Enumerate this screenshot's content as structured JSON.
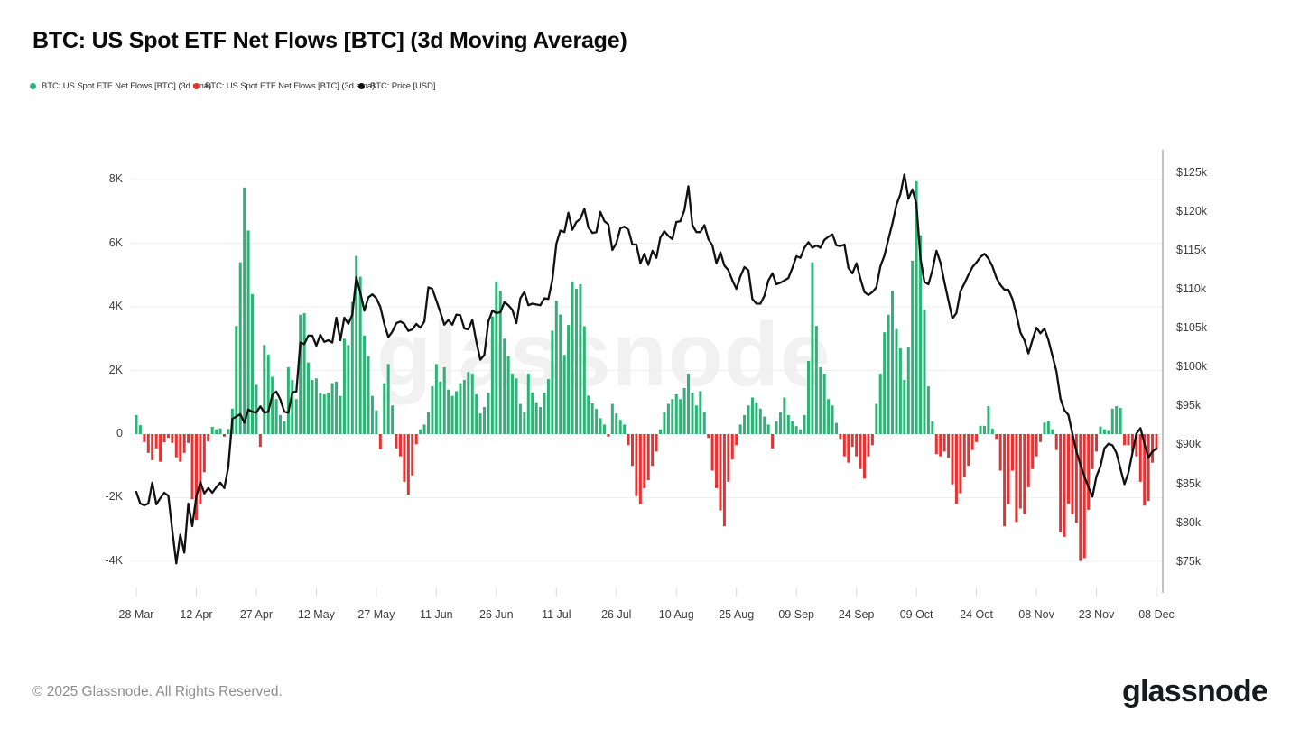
{
  "page": {
    "title": "BTC: US Spot ETF Net Flows [BTC] (3d Moving Average)",
    "watermark": "glassnode",
    "footer": {
      "copyright": "© 2025 Glassnode. All Rights Reserved.",
      "brand": "glassnode"
    }
  },
  "legend": {
    "items": [
      {
        "label": "BTC: US Spot ETF Net Flows [BTC] (3d sma)",
        "color": "#2eb277"
      },
      {
        "label": "BTC: US Spot ETF Net Flows [BTC] (3d sma)",
        "color": "#e23434"
      },
      {
        "label": "BTC: Price [USD]",
        "color": "#111111"
      }
    ]
  },
  "chart_data": {
    "type": "combo",
    "title": "BTC: US Spot ETF Net Flows [BTC] (3d Moving Average)",
    "start_date": "2025-03-28",
    "end_date": "2025-12-08",
    "x_tick_labels": [
      "28 Mar",
      "12 Apr",
      "27 Apr",
      "12 May",
      "27 May",
      "11 Jun",
      "26 Jun",
      "11 Jul",
      "26 Jul",
      "10 Aug",
      "25 Aug",
      "09 Sep",
      "24 Sep",
      "09 Oct",
      "24 Oct",
      "08 Nov",
      "23 Nov",
      "08 Dec"
    ],
    "x_tick_day_step": 15,
    "left_axis": {
      "unit": "BTC (3d sma net flow)",
      "tick_labels": [
        "8K",
        "6K",
        "4K",
        "2K",
        "0",
        "-2K",
        "-4K"
      ],
      "tick_values": [
        8000,
        6000,
        4000,
        2000,
        0,
        -2000,
        -4000
      ],
      "range": [
        -5200,
        9000
      ],
      "grid": true
    },
    "right_axis": {
      "unit": "BTC price USD",
      "tick_labels": [
        "$125k",
        "$120k",
        "$115k",
        "$110k",
        "$105k",
        "$100k",
        "$95k",
        "$90k",
        "$85k",
        "$80k",
        "$75k"
      ],
      "tick_values": [
        125,
        120,
        115,
        110,
        105,
        100,
        95,
        90,
        85,
        80,
        75
      ],
      "range": [
        71,
        128
      ]
    },
    "legend_position": "top-left",
    "series": [
      {
        "name": "BTC: US Spot ETF Net Flows [BTC] (3d sma)",
        "type": "bar",
        "positive_color": "#2eb277",
        "negative_color": "#e23434",
        "values": [
          600,
          280,
          -250,
          -590,
          -820,
          -450,
          -870,
          -260,
          -120,
          -280,
          -730,
          -870,
          -590,
          -280,
          -2050,
          -2700,
          -2200,
          -1200,
          -230,
          230,
          150,
          180,
          -80,
          160,
          800,
          3400,
          5400,
          7750,
          6400,
          4400,
          1550,
          -400,
          2800,
          2500,
          1800,
          1100,
          600,
          400,
          2100,
          1700,
          1100,
          3750,
          3800,
          2250,
          1700,
          1750,
          1300,
          1250,
          1300,
          1600,
          1650,
          1200,
          3000,
          2800,
          4150,
          5600,
          4950,
          3100,
          2450,
          1200,
          750,
          -480,
          1600,
          2200,
          900,
          -450,
          -700,
          -1500,
          -1900,
          -1300,
          -320,
          150,
          300,
          700,
          1500,
          2200,
          1650,
          2100,
          1400,
          1200,
          1350,
          1600,
          1700,
          1950,
          1900,
          1250,
          650,
          850,
          1300,
          3700,
          4800,
          4500,
          3000,
          2450,
          1900,
          1750,
          950,
          700,
          1900,
          1300,
          1000,
          850,
          1300,
          1730,
          3250,
          4190,
          3760,
          2490,
          3430,
          4800,
          4570,
          4710,
          3390,
          1210,
          965,
          790,
          500,
          300,
          -80,
          950,
          650,
          450,
          300,
          -350,
          -1000,
          -1950,
          -2200,
          -1700,
          -1450,
          -1000,
          -550,
          150,
          700,
          950,
          1100,
          1250,
          1100,
          1450,
          1900,
          1300,
          900,
          1350,
          700,
          -120,
          -1150,
          -1700,
          -2400,
          -2900,
          -1500,
          -800,
          -350,
          300,
          600,
          900,
          1150,
          1000,
          800,
          550,
          300,
          -450,
          400,
          700,
          1150,
          600,
          400,
          250,
          150,
          600,
          2300,
          5400,
          3400,
          2100,
          1900,
          1100,
          900,
          350,
          -150,
          -700,
          -900,
          -400,
          -700,
          -1100,
          -1400,
          -700,
          -350,
          950,
          1900,
          3200,
          3750,
          4500,
          3300,
          2700,
          1700,
          2750,
          5450,
          7950,
          6250,
          3900,
          1500,
          400,
          -630,
          -700,
          -550,
          -750,
          -1580,
          -2190,
          -1860,
          -1350,
          -1000,
          -500,
          -250,
          260,
          260,
          880,
          170,
          -150,
          -1150,
          -2900,
          -2200,
          -1150,
          -2760,
          -2340,
          -2520,
          -1670,
          -1100,
          -700,
          -250,
          360,
          410,
          150,
          -500,
          -3090,
          -3230,
          -2190,
          -2520,
          -2790,
          -3990,
          -3900,
          -2380,
          -1100,
          -550,
          240,
          150,
          100,
          800,
          880,
          820,
          -350,
          -350,
          -550,
          -700,
          -1500,
          -2250,
          -2100,
          -900,
          -500
        ]
      },
      {
        "name": "BTC: Price [USD]",
        "type": "line",
        "color": "#111111",
        "unit": "thousand USD",
        "values": [
          84.0,
          82.5,
          82.3,
          82.5,
          85.2,
          82.4,
          83.2,
          83.9,
          83.5,
          79.0,
          74.8,
          78.5,
          76.2,
          82.5,
          79.6,
          83.4,
          85.3,
          83.8,
          84.5,
          83.9,
          84.6,
          85.2,
          84.5,
          87.2,
          93.4,
          93.7,
          94.0,
          92.9,
          94.6,
          94.3,
          94.2,
          95.0,
          94.2,
          94.3,
          96.5,
          96.9,
          95.9,
          94.3,
          94.2,
          96.8,
          96.9,
          103.2,
          103.0,
          104.1,
          104.1,
          102.8,
          104.2,
          103.3,
          103.5,
          103.2,
          106.4,
          103.5,
          106.4,
          105.6,
          106.8,
          111.6,
          109.6,
          107.3,
          109.0,
          109.4,
          108.9,
          107.8,
          105.6,
          103.9,
          104.6,
          105.7,
          105.9,
          105.6,
          104.7,
          104.9,
          105.6,
          105.1,
          105.9,
          110.3,
          110.1,
          108.6,
          107.1,
          105.5,
          106.1,
          105.5,
          106.8,
          106.7,
          105.0,
          104.9,
          106.1,
          103.3,
          101.0,
          101.6,
          105.9,
          107.3,
          107.0,
          107.1,
          108.4,
          108.0,
          107.4,
          105.7,
          108.9,
          109.7,
          108.0,
          108.2,
          108.1,
          108.0,
          108.9,
          108.8,
          111.3,
          115.9,
          117.6,
          117.4,
          119.9,
          117.7,
          118.7,
          119.1,
          120.4,
          118.0,
          117.3,
          117.4,
          120.0,
          118.8,
          118.4,
          115.1,
          116.0,
          117.9,
          118.1,
          117.7,
          115.8,
          115.8,
          113.4,
          114.6,
          113.2,
          115.0,
          114.1,
          116.7,
          117.5,
          116.9,
          116.5,
          118.7,
          118.8,
          120.2,
          123.3,
          118.3,
          117.4,
          117.4,
          118.3,
          116.5,
          115.7,
          113.4,
          114.8,
          113.1,
          112.5,
          111.2,
          110.1,
          111.7,
          112.9,
          112.5,
          108.8,
          108.2,
          108.2,
          109.2,
          111.2,
          112.1,
          110.7,
          110.9,
          111.2,
          111.5,
          112.8,
          114.3,
          114.1,
          115.4,
          116.1,
          115.4,
          115.7,
          115.4,
          116.4,
          116.8,
          117.1,
          115.7,
          115.6,
          115.8,
          112.8,
          112.1,
          113.4,
          111.4,
          109.7,
          109.3,
          109.7,
          110.3,
          113.0,
          114.4,
          116.5,
          118.5,
          120.9,
          122.3,
          124.8,
          121.7,
          122.9,
          121.0,
          114.0,
          111.0,
          110.7,
          112.5,
          115.0,
          113.5,
          111.0,
          108.6,
          106.3,
          107.0,
          109.8,
          110.8,
          111.9,
          112.9,
          113.5,
          114.2,
          114.6,
          114.0,
          113.0,
          111.5,
          110.6,
          110.0,
          110.0,
          108.8,
          106.8,
          104.5,
          103.5,
          101.8,
          103.5,
          105.1,
          104.4,
          105.0,
          103.5,
          101.5,
          99.5,
          96.0,
          94.5,
          93.9,
          91.5,
          89.2,
          87.5,
          86.0,
          84.6,
          83.4,
          86.0,
          87.3,
          89.6,
          90.2,
          90.0,
          89.0,
          87.0,
          85.0,
          86.5,
          89.0,
          91.5,
          92.2,
          90.2,
          88.4,
          89.2,
          89.6
        ]
      }
    ]
  }
}
